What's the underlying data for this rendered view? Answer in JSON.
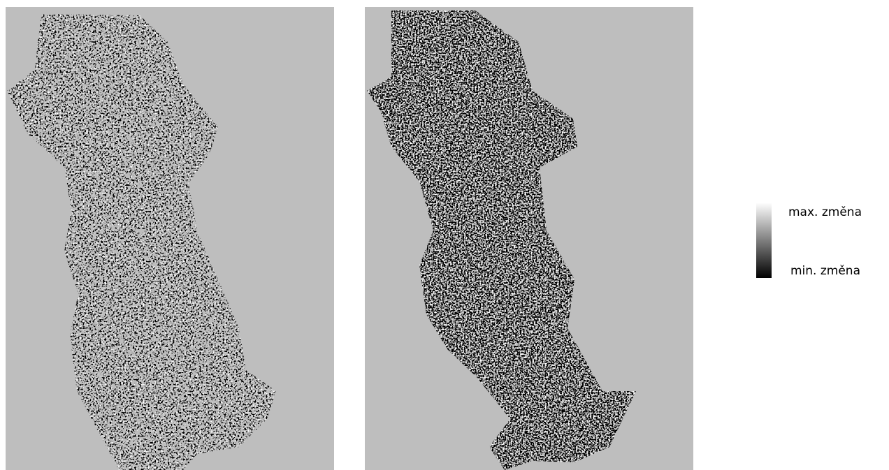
{
  "legend": {
    "max_label": "max. změna",
    "min_label": "min. změna"
  }
}
